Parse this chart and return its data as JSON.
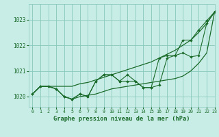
{
  "title": "Graphe pression niveau de la mer (hPa)",
  "bg_color": "#c8ece6",
  "grid_color": "#88c8bc",
  "line_color": "#1a6b2a",
  "xlim": [
    -0.5,
    23
  ],
  "ylim": [
    1019.6,
    1023.6
  ],
  "yticks": [
    1020,
    1021,
    1022,
    1023
  ],
  "xticks": [
    0,
    1,
    2,
    3,
    4,
    5,
    6,
    7,
    8,
    9,
    10,
    11,
    12,
    13,
    14,
    15,
    16,
    17,
    18,
    19,
    20,
    21,
    22,
    23
  ],
  "line_upper": [
    1020.1,
    1020.4,
    1020.4,
    1020.4,
    1020.4,
    1020.4,
    1020.5,
    1020.55,
    1020.65,
    1020.75,
    1020.85,
    1020.95,
    1021.05,
    1021.15,
    1021.25,
    1021.35,
    1021.5,
    1021.65,
    1021.8,
    1022.0,
    1022.2,
    1022.5,
    1022.85,
    1023.3
  ],
  "line_lower": [
    1020.1,
    1020.4,
    1020.4,
    1020.3,
    1020.0,
    1019.9,
    1020.0,
    1020.05,
    1020.1,
    1020.2,
    1020.3,
    1020.35,
    1020.4,
    1020.45,
    1020.5,
    1020.55,
    1020.6,
    1020.65,
    1020.7,
    1020.8,
    1021.0,
    1021.3,
    1021.7,
    1023.3
  ],
  "line_main": [
    1020.1,
    1020.4,
    1020.4,
    1020.3,
    1020.0,
    1019.9,
    1020.1,
    1020.0,
    1020.6,
    1020.85,
    1020.85,
    1020.6,
    1020.85,
    1020.6,
    1020.35,
    1020.35,
    1020.45,
    1021.5,
    1021.6,
    1021.7,
    1021.55,
    1021.6,
    1022.85,
    1023.3
  ],
  "line_extra": [
    1020.1,
    1020.4,
    1020.4,
    1020.3,
    1020.0,
    1019.9,
    1020.1,
    1020.0,
    1020.6,
    1020.85,
    1020.85,
    1020.6,
    1020.6,
    1020.6,
    1020.35,
    1020.35,
    1021.5,
    1021.6,
    1021.6,
    1022.2,
    1022.2,
    1022.6,
    1022.95,
    1023.3
  ]
}
